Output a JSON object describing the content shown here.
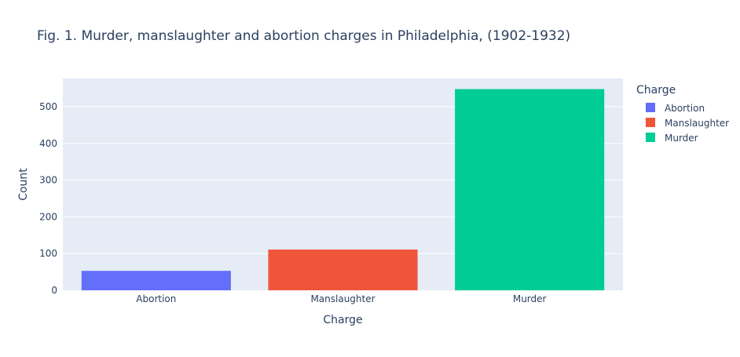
{
  "chart_data": {
    "type": "bar",
    "title": "Fig. 1.  Murder, manslaughter and abortion charges in Philadelphia, (1902-1932)",
    "xlabel": "Charge",
    "ylabel": "Count",
    "categories": [
      "Abortion",
      "Manslaughter",
      "Murder"
    ],
    "values": [
      53,
      111,
      548
    ],
    "colors": [
      "#636efa",
      "#EF553B",
      "#00cc96"
    ],
    "ylim": [
      0,
      577
    ],
    "yticks": [
      0,
      100,
      200,
      300,
      400,
      500
    ],
    "grid": true,
    "legend": {
      "title": "Charge",
      "placement": "top-right",
      "items": [
        "Abortion",
        "Manslaughter",
        "Murder"
      ]
    },
    "plot_background": "#e5ecf6",
    "grid_color": "#ffffff"
  }
}
